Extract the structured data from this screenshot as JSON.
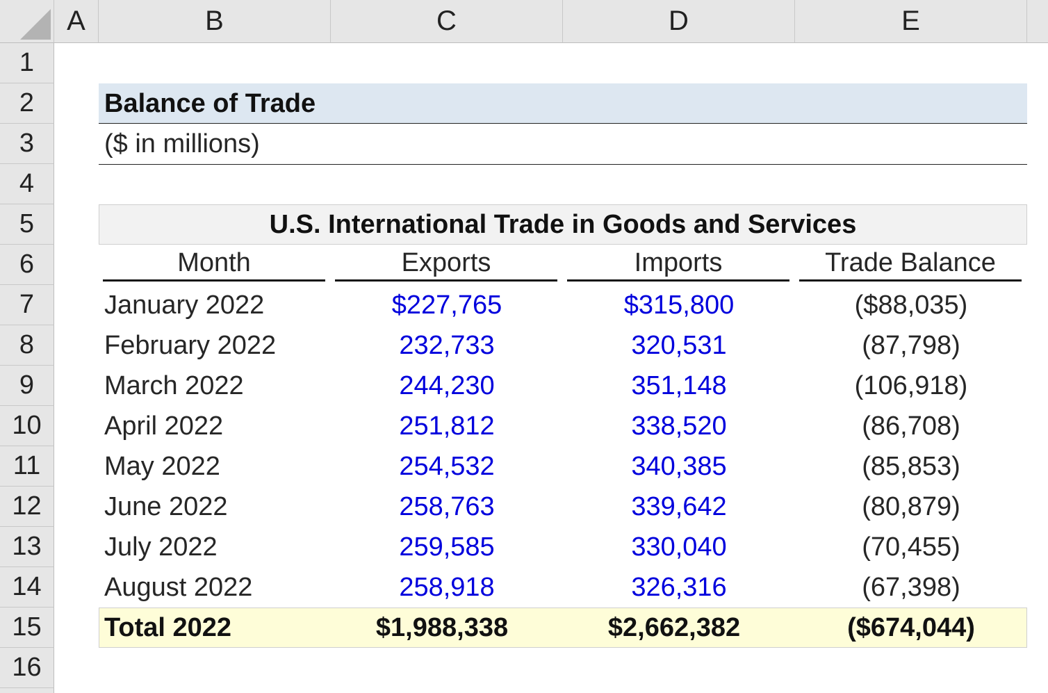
{
  "columns": [
    "A",
    "B",
    "C",
    "D",
    "E"
  ],
  "rows": [
    "1",
    "2",
    "3",
    "4",
    "5",
    "6",
    "7",
    "8",
    "9",
    "10",
    "11",
    "12",
    "13",
    "14",
    "15",
    "16"
  ],
  "sheet": {
    "title": "Balance of Trade",
    "units": "($ in millions)",
    "table_title": "U.S. International Trade in Goods and Services",
    "headers": [
      "Month",
      "Exports",
      "Imports",
      "Trade Balance"
    ],
    "data_rows": [
      {
        "month": "January 2022",
        "exports": "$227,765",
        "imports": "$315,800",
        "balance": "($88,035)"
      },
      {
        "month": "February 2022",
        "exports": "232,733",
        "imports": "320,531",
        "balance": "(87,798)"
      },
      {
        "month": "March 2022",
        "exports": "244,230",
        "imports": "351,148",
        "balance": "(106,918)"
      },
      {
        "month": "April 2022",
        "exports": "251,812",
        "imports": "338,520",
        "balance": "(86,708)"
      },
      {
        "month": "May 2022",
        "exports": "254,532",
        "imports": "340,385",
        "balance": "(85,853)"
      },
      {
        "month": "June 2022",
        "exports": "258,763",
        "imports": "339,642",
        "balance": "(80,879)"
      },
      {
        "month": "July 2022",
        "exports": "259,585",
        "imports": "330,040",
        "balance": "(70,455)"
      },
      {
        "month": "August 2022",
        "exports": "258,918",
        "imports": "326,316",
        "balance": "(67,398)"
      }
    ],
    "total": {
      "label": "Total 2022",
      "exports": "$1,988,338",
      "imports": "$2,662,382",
      "balance": "($674,044)"
    }
  },
  "colors": {
    "input_blue": "#0000dd",
    "title_band": "#dde7f1",
    "table_head_band": "#f2f2f2",
    "total_band": "#fefdd8",
    "header_gray": "#e6e6e6"
  }
}
